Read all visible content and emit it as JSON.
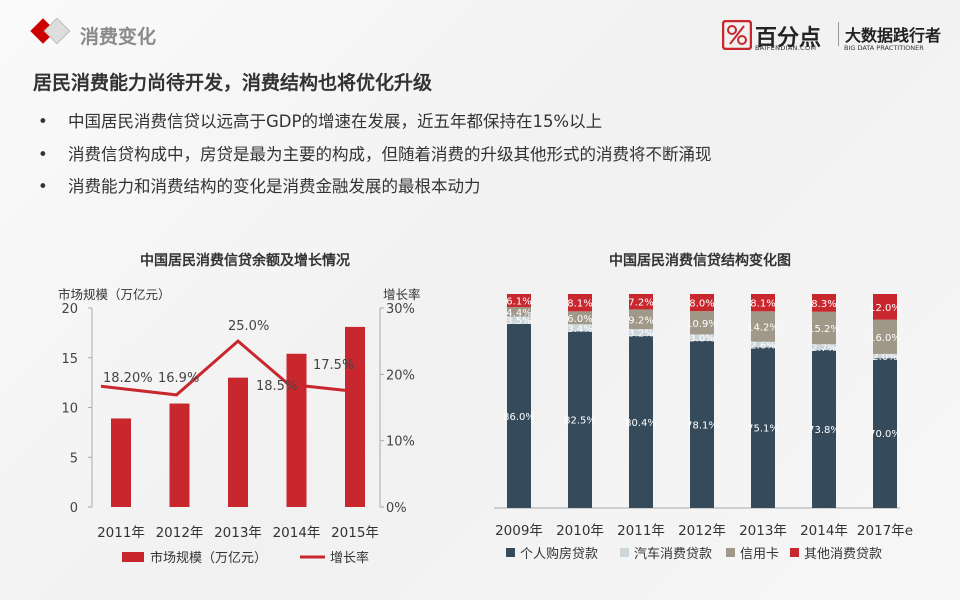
{
  "header": {
    "section": "消费变化",
    "logo_name": "百分点",
    "logo_domain": "BAIFENDIAN.COM",
    "slogan": "大数据践行者",
    "slogan_en": "BIG DATA PRACTITIONER"
  },
  "headline": "居民消费能力尚待开发，消费结构也将优化升级",
  "bullets": [
    "中国居民消费信贷以远高于GDP的增速在发展，近五年都保持在15%以上",
    "消费信贷构成中，房贷是最为主要的构成，但随着消费的升级其他形式的消费将不断涌现",
    "消费能力和消费结构的变化是消费金融发展的最根本动力"
  ],
  "bullet_glyph": "•",
  "colors": {
    "red": "#c8272e",
    "dark": "#354b5b",
    "light": "#cdd6db",
    "tan": "#a09888"
  },
  "chart_data": [
    {
      "type": "bar+line",
      "title": "中国居民消费信贷余额及增长情况",
      "categories": [
        "2011年",
        "2012年",
        "2013年",
        "2014年",
        "2015年"
      ],
      "ylabel": "市场规模（万亿元）",
      "y2label": "增长率",
      "ylim": [
        0,
        20
      ],
      "yticks": [
        "0",
        "5",
        "10",
        "15",
        "20"
      ],
      "y2lim": [
        0,
        30
      ],
      "y2ticks": [
        "0%",
        "10%",
        "20%",
        "30%"
      ],
      "series": [
        {
          "name": "市场规模（万亿元）",
          "type": "bar",
          "values": [
            8.9,
            10.4,
            13.0,
            15.4,
            18.1
          ]
        },
        {
          "name": "增长率",
          "type": "line",
          "values": [
            18.2,
            16.9,
            25.0,
            18.5,
            17.5
          ],
          "labels": [
            "18.20%",
            "16.9%",
            "25.0%",
            "18.5%",
            "17.5%"
          ]
        }
      ],
      "legend": "bottom"
    },
    {
      "type": "stacked-bar",
      "title": "中国居民消费信贷结构变化图",
      "categories": [
        "2009年",
        "2010年",
        "2011年",
        "2012年",
        "2013年",
        "2014年",
        "2017年e"
      ],
      "series": [
        {
          "name": "个人购房贷款",
          "values": [
            86.0,
            82.5,
            80.4,
            78.1,
            75.1,
            73.8,
            70.0
          ],
          "labels": [
            "86.0%",
            "82.5%",
            "80.4%",
            "78.1%",
            "75.1%",
            "73.8%",
            "70.0%"
          ]
        },
        {
          "name": "汽车消费贷款",
          "values": [
            3.5,
            3.4,
            3.2,
            3.0,
            2.6,
            2.7,
            2.0
          ],
          "labels": [
            "3.5%",
            "3.4%",
            "3.2%",
            "3.0%",
            "2.6%",
            "2.7%",
            "2.0%"
          ]
        },
        {
          "name": "信用卡",
          "values": [
            4.4,
            6.0,
            9.2,
            10.9,
            14.2,
            15.2,
            16.0
          ],
          "labels": [
            "4.4%",
            "6.0%",
            "9.2%",
            "10.9%",
            "14.2%",
            "15.2%",
            "16.0%"
          ]
        },
        {
          "name": "其他消费贷款",
          "values": [
            6.1,
            8.1,
            7.2,
            8.0,
            8.1,
            8.3,
            12.0
          ],
          "labels": [
            "6.1%",
            "8.1%",
            "7.2%",
            "8.0%",
            "8.1%",
            "8.3%",
            "12.0%"
          ]
        }
      ],
      "legend": "bottom"
    }
  ]
}
